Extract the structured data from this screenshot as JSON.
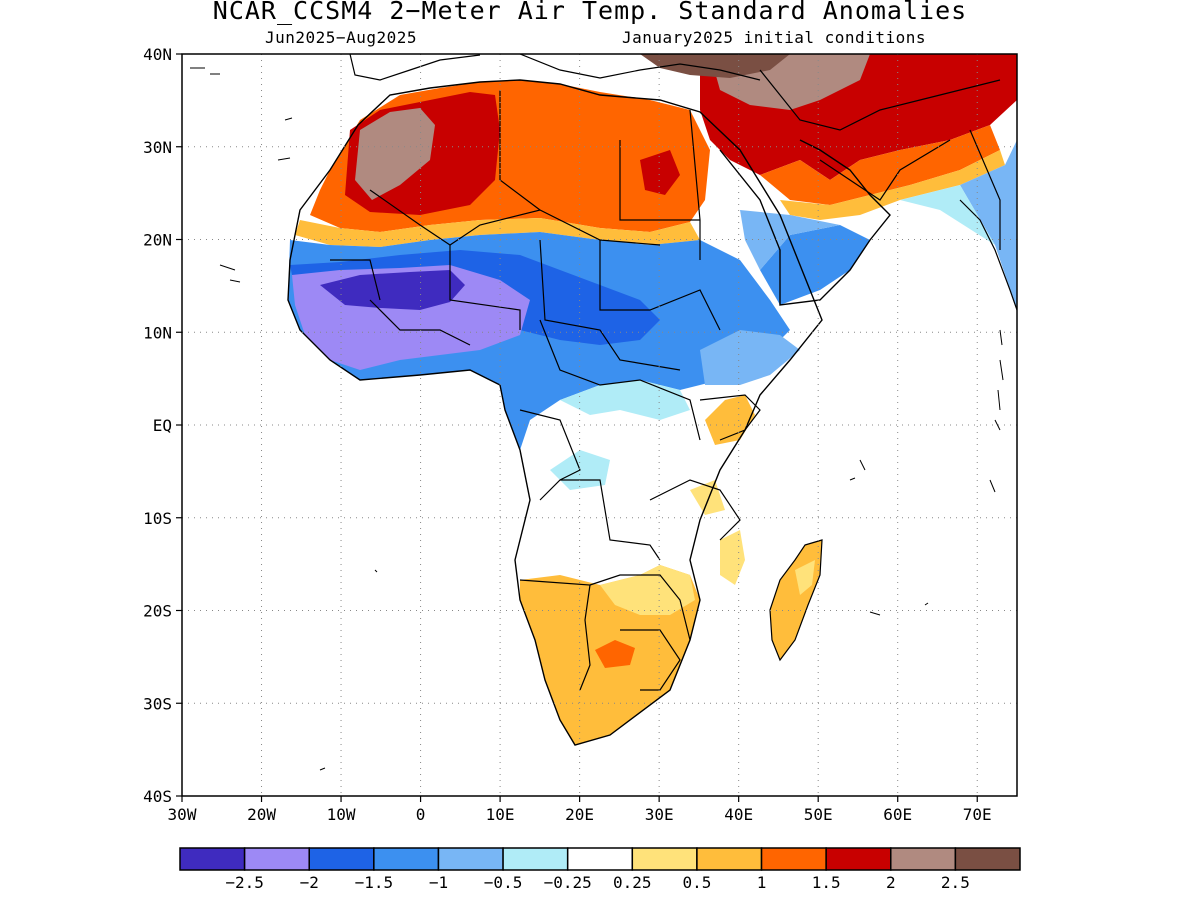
{
  "title": "NCAR_CCSM4 2−Meter Air Temp. Standard Anomalies",
  "subtitle_left": "Jun2025−Aug2025",
  "subtitle_right": "January2025 initial conditions",
  "map": {
    "lon_range": [
      -30,
      75
    ],
    "lat_range": [
      -40,
      40
    ],
    "x_ticks": [
      {
        "lon": -30,
        "label": "30W"
      },
      {
        "lon": -20,
        "label": "20W"
      },
      {
        "lon": -10,
        "label": "10W"
      },
      {
        "lon": 0,
        "label": "0"
      },
      {
        "lon": 10,
        "label": "10E"
      },
      {
        "lon": 20,
        "label": "20E"
      },
      {
        "lon": 30,
        "label": "30E"
      },
      {
        "lon": 40,
        "label": "40E"
      },
      {
        "lon": 50,
        "label": "50E"
      },
      {
        "lon": 60,
        "label": "60E"
      },
      {
        "lon": 70,
        "label": "70E"
      }
    ],
    "y_ticks": [
      {
        "lat": 40,
        "label": "40N"
      },
      {
        "lat": 30,
        "label": "30N"
      },
      {
        "lat": 20,
        "label": "20N"
      },
      {
        "lat": 10,
        "label": "10N"
      },
      {
        "lat": 0,
        "label": "EQ"
      },
      {
        "lat": -10,
        "label": "10S"
      },
      {
        "lat": -20,
        "label": "20S"
      },
      {
        "lat": -30,
        "label": "30S"
      },
      {
        "lat": -40,
        "label": "40S"
      }
    ],
    "grid": "dotted"
  },
  "colorbar": {
    "colors": [
      "#3f2bbf",
      "#9d89f5",
      "#1e63e6",
      "#3c90f0",
      "#78b6f5",
      "#b0ecf7",
      "#ffffff",
      "#ffe27a",
      "#ffbd3b",
      "#ff6500",
      "#c80000",
      "#b08a80",
      "#7a4f43"
    ],
    "labels": [
      "−2.5",
      "−2",
      "−1.5",
      "−1",
      "−0.5",
      "−0.25",
      "0.25",
      "0.5",
      "1",
      "1.5",
      "2",
      "2.5"
    ]
  }
}
